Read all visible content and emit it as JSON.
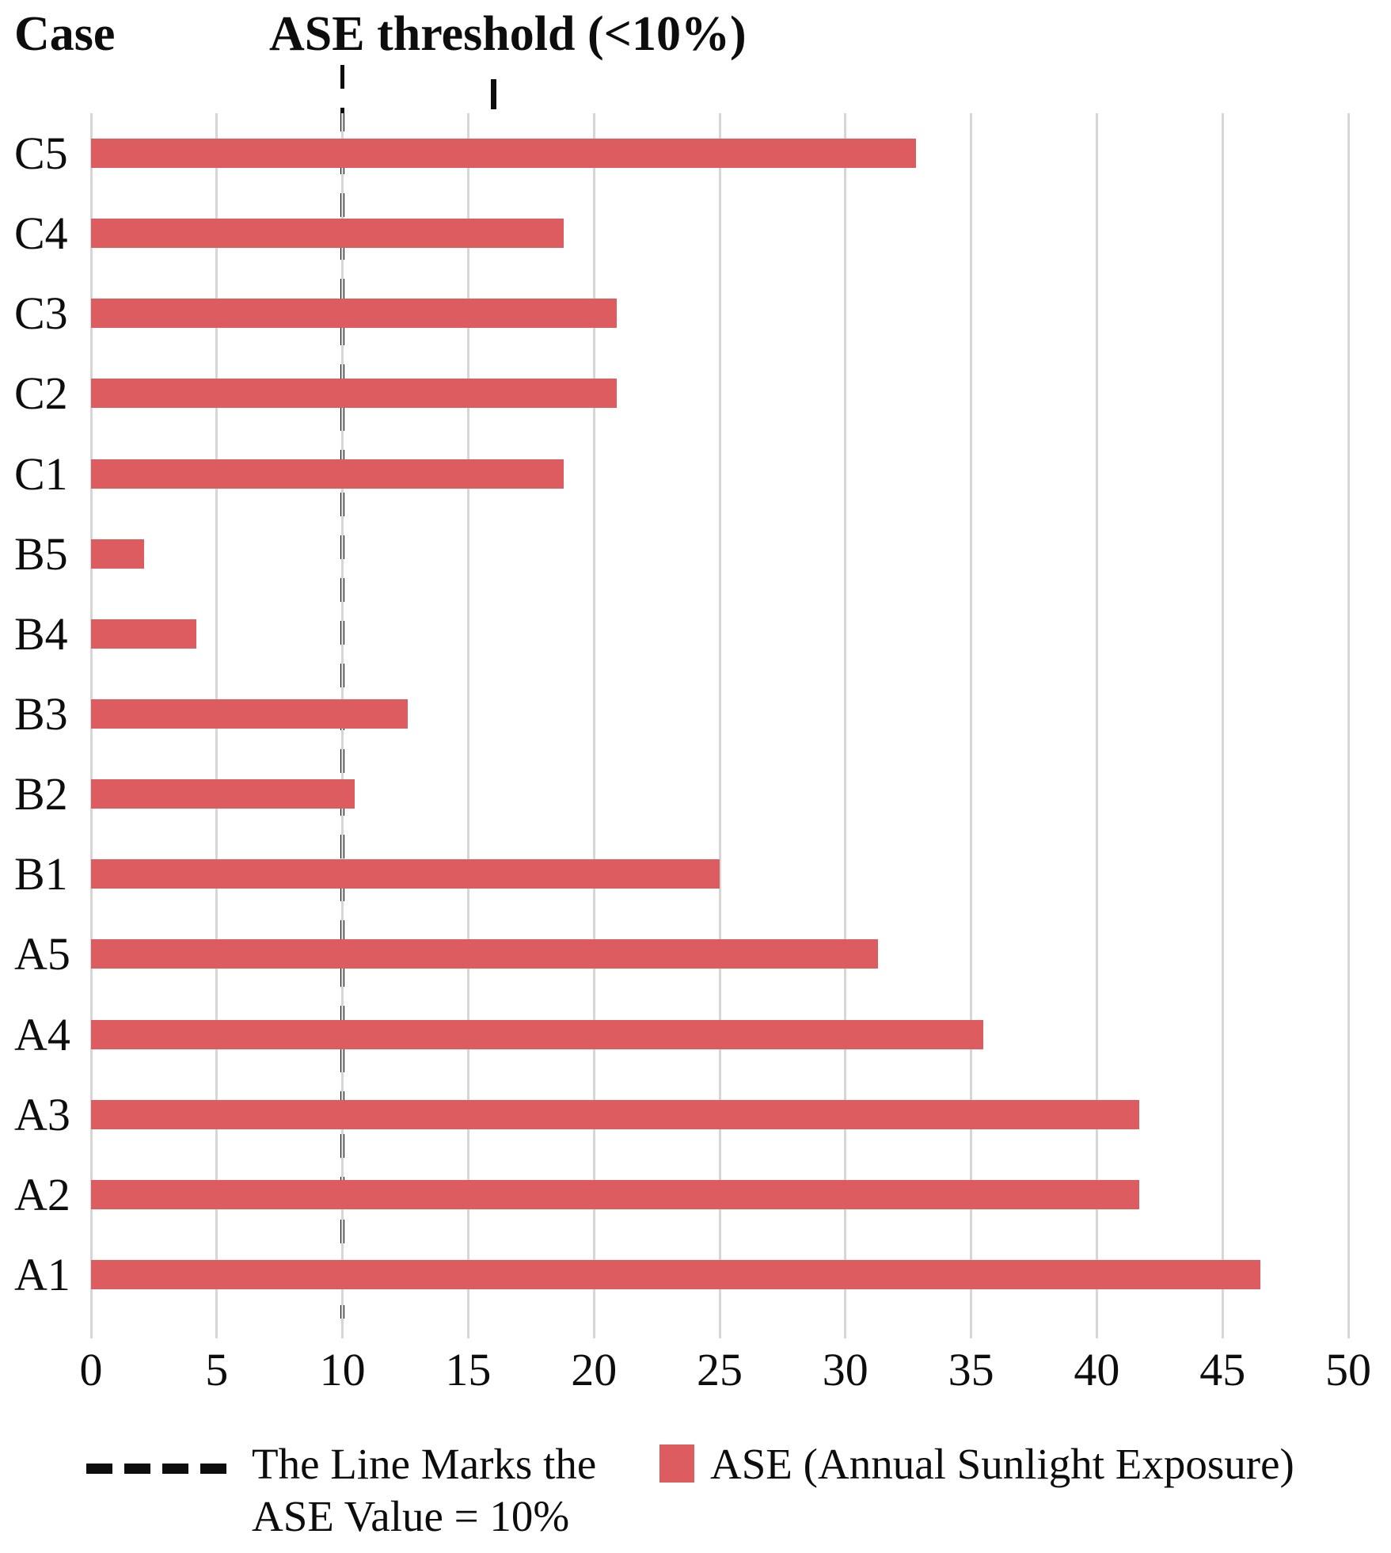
{
  "header": {
    "y_axis_title": "Case",
    "chart_title": "ASE threshold (<10%)"
  },
  "chart_data": {
    "type": "bar",
    "orientation": "horizontal",
    "title": "ASE threshold (<10%)",
    "category_axis_title": "Case",
    "categories": [
      "C5",
      "C4",
      "C3",
      "C2",
      "C1",
      "B5",
      "B4",
      "B3",
      "B2",
      "B1",
      "A5",
      "A4",
      "A3",
      "A2",
      "A1"
    ],
    "series": [
      {
        "name": "ASE (Annual Sunlight Exposure)",
        "values": [
          32.8,
          18.8,
          20.9,
          20.9,
          18.8,
          2.1,
          4.2,
          12.6,
          10.5,
          25.0,
          31.3,
          35.5,
          41.7,
          41.7,
          46.5
        ]
      }
    ],
    "threshold_line": {
      "value": 10,
      "style": "dashed",
      "color": "#0d0d0d"
    },
    "xlim": [
      0,
      50
    ],
    "x_ticks": [
      0,
      5,
      10,
      15,
      20,
      25,
      30,
      35,
      40,
      45,
      50
    ],
    "grid": true,
    "legend_position": "bottom",
    "bar_color": "#dd5c60",
    "gridline_color": "#d6d6d6"
  },
  "legend": {
    "threshold_label_line1": "The Line Marks the",
    "threshold_label_line2": "ASE Value = 10%",
    "series_label": "ASE (Annual Sunlight Exposure)"
  }
}
